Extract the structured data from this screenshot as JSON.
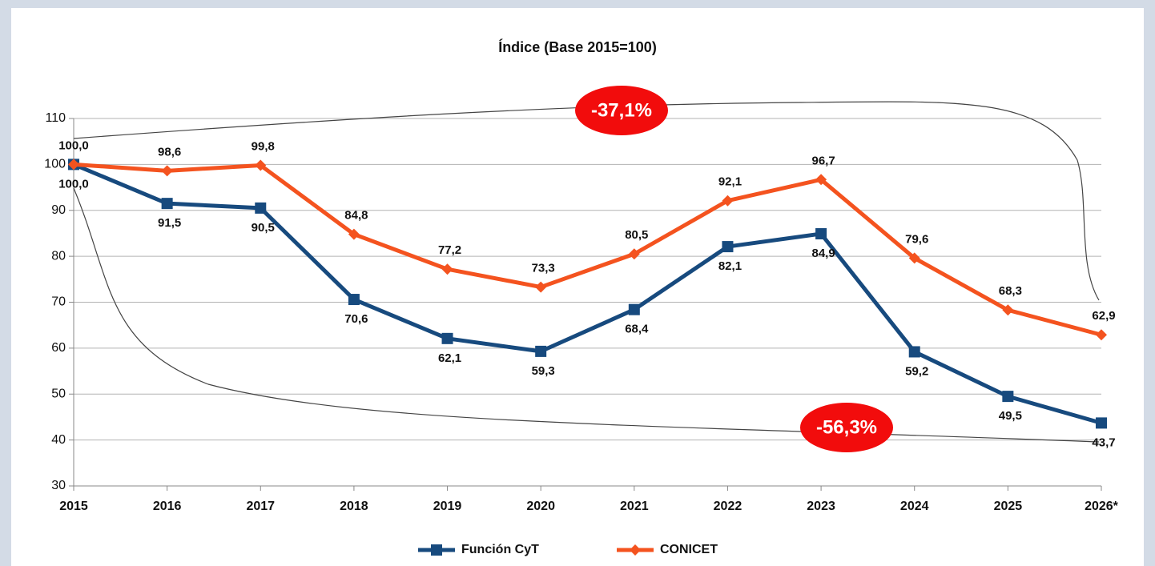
{
  "chart_data": {
    "type": "line",
    "title": "Índice (Base 2015=100)",
    "categories": [
      "2015",
      "2016",
      "2017",
      "2018",
      "2019",
      "2020",
      "2021",
      "2022",
      "2023",
      "2024",
      "2025",
      "2026*"
    ],
    "series": [
      {
        "name": "Función CyT",
        "color": "#174a7e",
        "marker": "square",
        "values": [
          100,
          91.5,
          90.5,
          70.6,
          62.1,
          59.3,
          68.4,
          82.1,
          84.9,
          59.2,
          49.5,
          43.7
        ],
        "value_labels": [
          "100,0",
          "91,5",
          "90,5",
          "70,6",
          "62,1",
          "59,3",
          "68,4",
          "82,1",
          "84,9",
          "59,2",
          "49,5",
          "43,7"
        ]
      },
      {
        "name": "CONICET",
        "color": "#f4531f",
        "marker": "diamond",
        "values": [
          100,
          98.6,
          99.8,
          84.8,
          77.2,
          73.3,
          80.5,
          92.1,
          96.7,
          79.6,
          68.3,
          62.9
        ],
        "value_labels": [
          "100,0",
          "98,6",
          "99,8",
          "84,8",
          "77,2",
          "73,3",
          "80,5",
          "92,1",
          "96,7",
          "79,6",
          "68,3",
          "62,9"
        ]
      }
    ],
    "ylim": [
      30,
      110
    ],
    "yticks": [
      30,
      40,
      50,
      60,
      70,
      80,
      90,
      100,
      110
    ],
    "grid": true,
    "legend": "bottom",
    "annotations": [
      "-37,1%",
      "-56,3%"
    ]
  }
}
